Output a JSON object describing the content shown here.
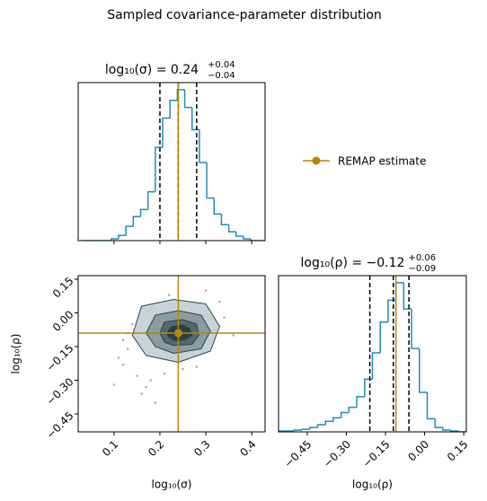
{
  "title": "Sampled covariance-parameter distribution",
  "legend": {
    "label": "REMAP estimate",
    "color": "#b8860b"
  },
  "chart_data": [
    {
      "type": "histogram",
      "title": "log₁₀(σ) = 0.24",
      "title_upper": "+0.04",
      "title_lower": "−0.04",
      "color": "#1f8db5",
      "bins": [
        0.03,
        0.046,
        0.062,
        0.078,
        0.094,
        0.11,
        0.126,
        0.142,
        0.158,
        0.174,
        0.19,
        0.206,
        0.222,
        0.238,
        0.254,
        0.27,
        0.286,
        0.302,
        0.318,
        0.334,
        0.35,
        0.366,
        0.382,
        0.398,
        0.414,
        0.43
      ],
      "counts": [
        0,
        0,
        0,
        0,
        2,
        6,
        16,
        27,
        35,
        55,
        105,
        138,
        158,
        170,
        150,
        125,
        88,
        48,
        30,
        18,
        10,
        5,
        2,
        0,
        0
      ],
      "xlim": [
        0.022,
        0.429
      ],
      "ylim": [
        0,
        178
      ],
      "xticks": [
        0.1,
        0.2,
        0.3,
        0.4
      ],
      "xticklabels": false,
      "quantiles": [
        0.2,
        0.24,
        0.28
      ],
      "truth": 0.24
    },
    {
      "type": "scatter",
      "xlabel": "log₁₀(σ)",
      "ylabel": "log₁₀(ρ)",
      "xlim": [
        0.022,
        0.429
      ],
      "ylim": [
        -0.53,
        0.166
      ],
      "xticks": [
        0.1,
        0.2,
        0.3,
        0.4
      ],
      "yticks": [
        {
          "value": 0.15,
          "label": "0.15"
        },
        {
          "value": 0,
          "label": "0.00"
        },
        {
          "value": -0.15,
          "label": "−0.15"
        },
        {
          "value": -0.3,
          "label": "−0.30"
        },
        {
          "value": -0.45,
          "label": "−0.45"
        }
      ],
      "x": [
        0.12,
        0.13,
        0.11,
        0.15,
        0.14,
        0.1,
        0.16,
        0.18,
        0.21,
        0.25,
        0.28,
        0.34,
        0.36,
        0.33,
        0.13,
        0.19,
        0.12,
        0.22,
        0.3,
        0.17
      ],
      "y": [
        -0.12,
        -0.16,
        -0.2,
        -0.28,
        -0.05,
        -0.32,
        -0.36,
        -0.3,
        -0.27,
        -0.25,
        -0.24,
        -0.02,
        -0.1,
        0.05,
        -0.09,
        -0.4,
        -0.23,
        0.08,
        0.1,
        -0.33
      ],
      "point_color": "#777777",
      "contours": [
        {
          "color": "#c9d3d5",
          "x": [
            0.14,
            0.16,
            0.23,
            0.3,
            0.33,
            0.31,
            0.24,
            0.17
          ],
          "y": [
            -0.1,
            0.03,
            0.06,
            0.04,
            -0.06,
            -0.17,
            -0.22,
            -0.19
          ]
        },
        {
          "color": "#8c9b9d",
          "x": [
            0.17,
            0.19,
            0.24,
            0.29,
            0.31,
            0.29,
            0.23,
            0.19
          ],
          "y": [
            -0.09,
            -0.01,
            0.01,
            -0.01,
            -0.08,
            -0.16,
            -0.18,
            -0.15
          ]
        },
        {
          "color": "#56696c",
          "x": [
            0.2,
            0.21,
            0.25,
            0.28,
            0.285,
            0.27,
            0.23,
            0.21
          ],
          "y": [
            -0.09,
            -0.04,
            -0.03,
            -0.05,
            -0.1,
            -0.14,
            -0.145,
            -0.13
          ]
        },
        {
          "color": "#2e3e40",
          "x": [
            0.215,
            0.225,
            0.25,
            0.265,
            0.27,
            0.255,
            0.235,
            0.22
          ],
          "y": [
            -0.09,
            -0.06,
            -0.055,
            -0.07,
            -0.1,
            -0.12,
            -0.125,
            -0.11
          ]
        }
      ],
      "truth": {
        "x": 0.24,
        "y": -0.09
      }
    },
    {
      "type": "histogram",
      "title": "log₁₀(ρ) = −0.12",
      "title_upper": "+0.06",
      "title_lower": "−0.09",
      "xlabel": "log₁₀(ρ)",
      "color": "#1f8db5",
      "bins": [
        -0.56,
        -0.53,
        -0.5,
        -0.47,
        -0.44,
        -0.41,
        -0.38,
        -0.35,
        -0.32,
        -0.29,
        -0.26,
        -0.23,
        -0.2,
        -0.17,
        -0.14,
        -0.11,
        -0.08,
        -0.05,
        -0.02,
        0.01,
        0.04,
        0.07,
        0.1,
        0.13,
        0.16
      ],
      "counts": [
        1,
        1,
        2,
        3,
        5,
        8,
        12,
        16,
        22,
        28,
        40,
        60,
        90,
        125,
        150,
        170,
        140,
        95,
        45,
        15,
        5,
        2,
        1,
        0
      ],
      "xlim": [
        -0.56,
        0.16
      ],
      "ylim": [
        0,
        178
      ],
      "xticklabels": true,
      "xticks": [
        {
          "value": -0.45,
          "label": "−0.45"
        },
        {
          "value": -0.3,
          "label": "−0.30"
        },
        {
          "value": -0.15,
          "label": "−0.15"
        },
        {
          "value": 0,
          "label": "0.00"
        },
        {
          "value": 0.15,
          "label": "0.15"
        }
      ],
      "quantiles": [
        -0.21,
        -0.12,
        -0.06
      ],
      "truth": -0.11
    }
  ]
}
